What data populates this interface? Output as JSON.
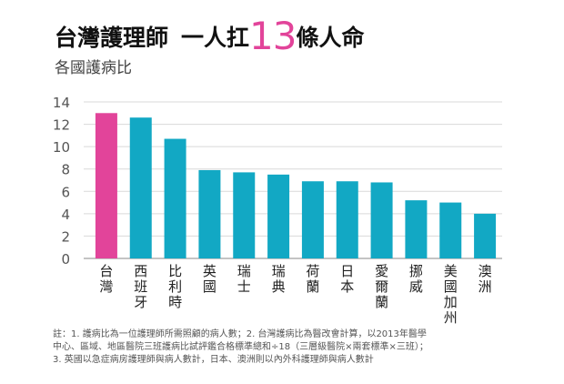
{
  "header": {
    "title_part1": "台灣護理師",
    "title_part2": "一人扛",
    "title_number": "13",
    "title_part3": "條人命",
    "subtitle": "各國護病比"
  },
  "chart_data": {
    "type": "bar",
    "categories": [
      "台灣",
      "西班牙",
      "比利時",
      "英國",
      "瑞士",
      "瑞典",
      "荷蘭",
      "日本",
      "愛爾蘭",
      "挪威",
      "美國加州",
      "澳洲"
    ],
    "values": [
      13,
      12.6,
      10.7,
      7.9,
      7.7,
      7.5,
      6.9,
      6.9,
      6.8,
      5.2,
      5.0,
      4.0
    ],
    "highlight_index": 0,
    "ylim": [
      0,
      14
    ],
    "yticks": [
      0,
      2,
      4,
      6,
      8,
      10,
      12,
      14
    ],
    "grid": true,
    "colors": {
      "highlight": "#e2449a",
      "bar": "#12a8c4",
      "grid": "#d9d9d9",
      "axis": "#888888"
    }
  },
  "notes": {
    "line1": "註：1. 護病比為一位護理師所需照顧的病人數；2. 台灣護病比為醫改會計算，以2013年醫學",
    "line2": "中心、區域、地區醫院三班護病比試評鑑合格標準總和÷18（三層級醫院×兩套標準×三班）；",
    "line3": "3. 英國以急症病房護理師與病人數計，日本、澳洲則以內外科護理師與病人數計"
  }
}
